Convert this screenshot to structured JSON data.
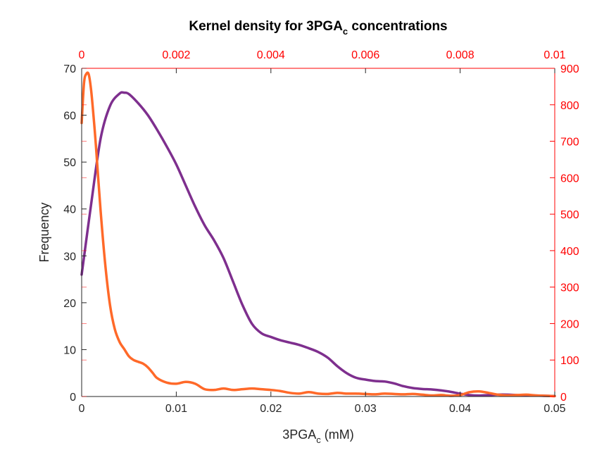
{
  "chart_data": {
    "type": "line",
    "title_main": "Kernel density for 3PGA",
    "title_sub": "c",
    "title_tail": " concentrations",
    "xlabel_main": "3PGA",
    "xlabel_sub": "c",
    "xlabel_tail": " (mM)",
    "ylabel": "Frequency",
    "grid": false,
    "axes": {
      "bottom": {
        "range": [
          0,
          0.05
        ],
        "ticks": [
          "0",
          "0.01",
          "0.02",
          "0.03",
          "0.04",
          "0.05"
        ],
        "tick_values": [
          0,
          0.01,
          0.02,
          0.03,
          0.04,
          0.05
        ]
      },
      "left": {
        "range": [
          0,
          70
        ],
        "ticks": [
          "0",
          "10",
          "20",
          "30",
          "40",
          "50",
          "60",
          "70"
        ],
        "tick_values": [
          0,
          10,
          20,
          30,
          40,
          50,
          60,
          70
        ]
      },
      "top": {
        "range": [
          0,
          0.01
        ],
        "ticks": [
          "0",
          "0.002",
          "0.004",
          "0.006",
          "0.008",
          "0.01"
        ],
        "tick_values": [
          0,
          0.002,
          0.004,
          0.006,
          0.008,
          0.01
        ],
        "color": "#ff0000"
      },
      "right": {
        "range": [
          0,
          900
        ],
        "ticks": [
          "0",
          "100",
          "200",
          "300",
          "400",
          "500",
          "600",
          "700",
          "800",
          "900"
        ],
        "tick_values": [
          0,
          100,
          200,
          300,
          400,
          500,
          600,
          700,
          800,
          900
        ],
        "color": "#ff0000"
      }
    },
    "series": [
      {
        "color": "#7e2f8e",
        "x_axis": "bottom",
        "y_axis": "left",
        "x": [
          0,
          0.001,
          0.002,
          0.003,
          0.004,
          0.0045,
          0.005,
          0.006,
          0.007,
          0.008,
          0.009,
          0.01,
          0.011,
          0.012,
          0.013,
          0.014,
          0.015,
          0.016,
          0.017,
          0.018,
          0.019,
          0.02,
          0.021,
          0.022,
          0.023,
          0.024,
          0.025,
          0.026,
          0.027,
          0.028,
          0.029,
          0.03,
          0.031,
          0.032,
          0.033,
          0.034,
          0.035,
          0.036,
          0.037,
          0.038,
          0.039,
          0.04,
          0.041,
          0.042,
          0.043,
          0.044,
          0.045,
          0.046,
          0.047,
          0.048,
          0.049,
          0.05
        ],
        "y": [
          26,
          41,
          55,
          62,
          64.6,
          64.8,
          64.5,
          62.5,
          60,
          56.8,
          53.3,
          49.5,
          45,
          40.5,
          36.5,
          33.3,
          29.5,
          24.5,
          19.5,
          15.5,
          13.5,
          12.7,
          12,
          11.5,
          11,
          10.3,
          9.5,
          8.3,
          6.5,
          5,
          4,
          3.6,
          3.3,
          3.2,
          2.8,
          2.2,
          1.8,
          1.6,
          1.5,
          1.3,
          1,
          0.6,
          0.3,
          0.2,
          0.3,
          0.4,
          0.4,
          0.3,
          0.2,
          0.2,
          0.15,
          0.1
        ]
      },
      {
        "color": "#ff6929",
        "x_axis": "top",
        "y_axis": "right",
        "x": [
          0,
          5e-05,
          0.0001,
          0.00015,
          0.0002,
          0.00025,
          0.0003,
          0.0004,
          0.0005,
          0.0006,
          0.0007,
          0.0008,
          0.0009,
          0.001,
          0.0011,
          0.0012,
          0.0013,
          0.0014,
          0.0015,
          0.0016,
          0.0018,
          0.002,
          0.0022,
          0.0024,
          0.0026,
          0.0028,
          0.003,
          0.0032,
          0.0034,
          0.0036,
          0.0038,
          0.004,
          0.0042,
          0.0044,
          0.0046,
          0.0048,
          0.005,
          0.0052,
          0.0054,
          0.0056,
          0.0058,
          0.006,
          0.0062,
          0.0064,
          0.0066,
          0.0068,
          0.007,
          0.0072,
          0.0074,
          0.0076,
          0.0078,
          0.008,
          0.0082,
          0.0084,
          0.0086,
          0.0088,
          0.009,
          0.0092,
          0.0094,
          0.0096,
          0.0098,
          0.01
        ],
        "y": [
          750,
          860,
          885,
          883,
          840,
          770,
          690,
          510,
          360,
          250,
          185,
          150,
          130,
          110,
          100,
          95,
          90,
          80,
          65,
          50,
          38,
          35,
          40,
          35,
          20,
          18,
          22,
          18,
          20,
          22,
          20,
          18,
          15,
          10,
          8,
          12,
          8,
          7,
          10,
          8,
          8,
          7,
          6,
          8,
          7,
          6,
          7,
          5,
          3,
          4,
          2,
          4,
          12,
          14,
          10,
          5,
          3,
          4,
          5,
          3,
          2,
          1
        ]
      }
    ]
  }
}
